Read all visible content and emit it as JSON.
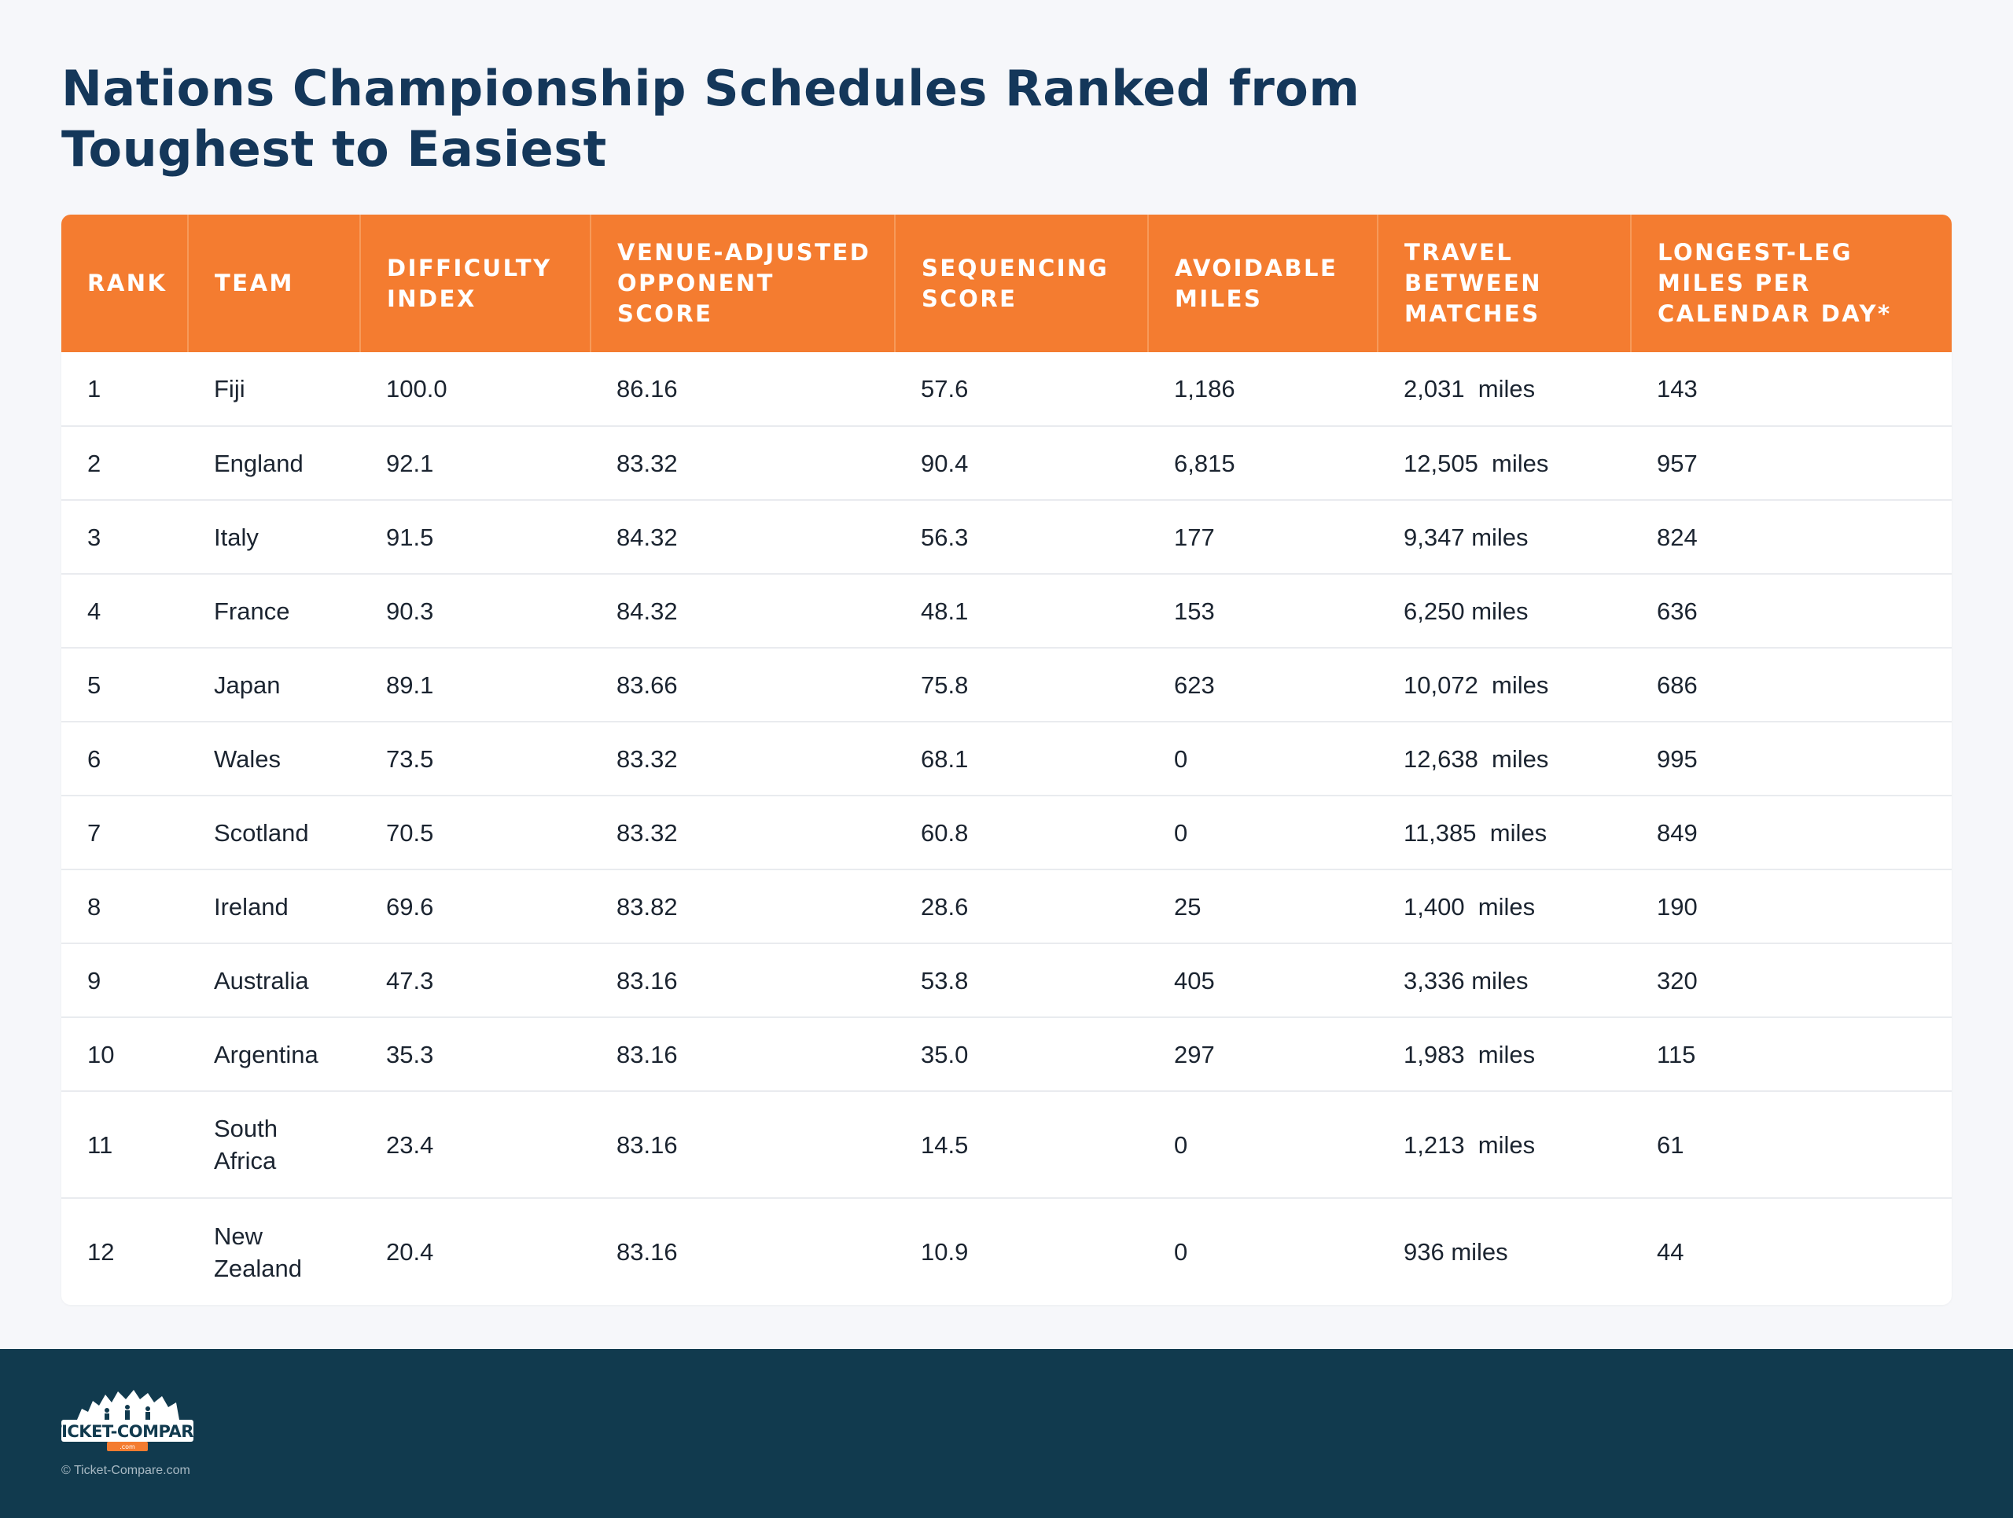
{
  "title": "Nations Championship Schedules Ranked from Toughest to Easiest",
  "columns": [
    "RANK",
    "TEAM",
    "DIFFICULTY INDEX",
    "VENUE-ADJUSTED OPPONENT SCORE",
    "SEQUENCING SCORE",
    "AVOIDABLE MILES",
    "TRAVEL BETWEEN MATCHES",
    "LONGEST-LEG MILES PER CALENDAR DAY*"
  ],
  "rows": [
    [
      "1",
      "Fiji",
      "100.0",
      "86.16",
      "57.6",
      "1,186",
      "2,031  miles",
      "143"
    ],
    [
      "2",
      "England",
      "92.1",
      "83.32",
      "90.4",
      "6,815",
      "12,505  miles",
      "957"
    ],
    [
      "3",
      "Italy",
      "91.5",
      "84.32",
      "56.3",
      "177",
      "9,347 miles",
      "824"
    ],
    [
      "4",
      "France",
      "90.3",
      "84.32",
      "48.1",
      "153",
      "6,250 miles",
      "636"
    ],
    [
      "5",
      "Japan",
      "89.1",
      "83.66",
      "75.8",
      "623",
      "10,072  miles",
      "686"
    ],
    [
      "6",
      "Wales",
      "73.5",
      "83.32",
      "68.1",
      "0",
      "12,638  miles",
      "995"
    ],
    [
      "7",
      "Scotland",
      "70.5",
      "83.32",
      "60.8",
      "0",
      "11,385  miles",
      "849"
    ],
    [
      "8",
      "Ireland",
      "69.6",
      "83.82",
      "28.6",
      "25",
      "1,400  miles",
      "190"
    ],
    [
      "9",
      "Australia",
      "47.3",
      "83.16",
      "53.8",
      "405",
      "3,336 miles",
      "320"
    ],
    [
      "10",
      "Argentina",
      "35.3",
      "83.16",
      "35.0",
      "297",
      "1,983  miles",
      "115"
    ],
    [
      "11",
      "South Africa",
      "23.4",
      "83.16",
      "14.5",
      "0",
      "1,213  miles",
      "61"
    ],
    [
      "12",
      "New Zealand",
      "20.4",
      "83.16",
      "10.9",
      "0",
      "936 miles",
      "44"
    ]
  ],
  "footer": {
    "logo_text": "TICKET-COMPARE",
    "logo_sub": ".com",
    "copyright": "© Ticket-Compare.com"
  },
  "colors": {
    "header_bg": "#f47c30",
    "title": "#14375a",
    "footer_bg": "#113a4e"
  }
}
